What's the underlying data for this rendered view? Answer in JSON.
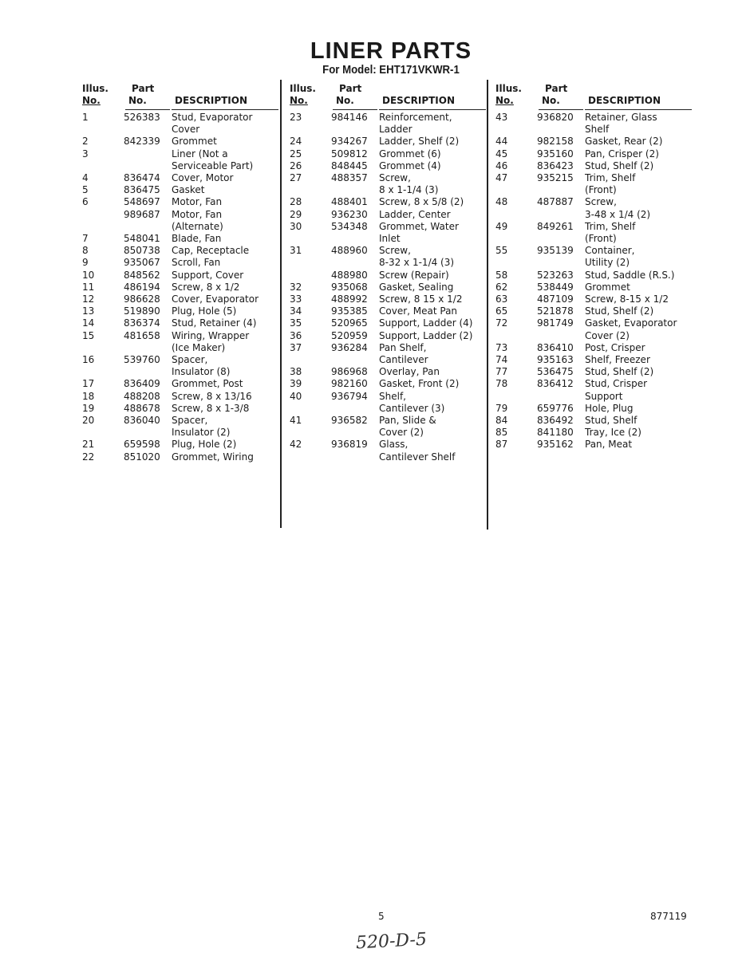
{
  "title": "LINER PARTS",
  "subtitle": "For Model: EHT171VKWR-1",
  "headers": {
    "illus_1": "Illus.",
    "illus_2": "No.",
    "part_1": "Part",
    "part_2": "No.",
    "desc": "DESCRIPTION"
  },
  "columns": [
    {
      "rows": [
        {
          "illus": "1",
          "part": "526383",
          "desc": [
            "Stud, Evaporator",
            "Cover"
          ]
        },
        {
          "illus": "2",
          "part": "842339",
          "desc": [
            "Grommet"
          ]
        },
        {
          "illus": "3",
          "part": "",
          "desc": [
            "Liner (Not a",
            "Serviceable Part)"
          ]
        },
        {
          "illus": "4",
          "part": "836474",
          "desc": [
            "Cover, Motor"
          ]
        },
        {
          "illus": "5",
          "part": "836475",
          "desc": [
            "Gasket"
          ]
        },
        {
          "illus": "6",
          "part": "548697",
          "desc": [
            "Motor, Fan"
          ]
        },
        {
          "illus": "",
          "part": "989687",
          "desc": [
            "Motor, Fan",
            "(Alternate)"
          ]
        },
        {
          "illus": "7",
          "part": "548041",
          "desc": [
            "Blade, Fan"
          ]
        },
        {
          "illus": "8",
          "part": "850738",
          "desc": [
            "Cap, Receptacle"
          ]
        },
        {
          "illus": "9",
          "part": "935067",
          "desc": [
            "Scroll, Fan"
          ]
        },
        {
          "illus": "10",
          "part": "848562",
          "desc": [
            "Support, Cover"
          ]
        },
        {
          "illus": "11",
          "part": "486194",
          "desc": [
            "Screw, 8 x 1/2"
          ]
        },
        {
          "illus": "12",
          "part": "986628",
          "desc": [
            "Cover, Evaporator"
          ]
        },
        {
          "illus": "13",
          "part": "519890",
          "desc": [
            "Plug, Hole (5)"
          ]
        },
        {
          "illus": "14",
          "part": "836374",
          "desc": [
            "Stud, Retainer (4)"
          ]
        },
        {
          "illus": "15",
          "part": "481658",
          "desc": [
            "Wiring, Wrapper",
            "(Ice Maker)"
          ]
        },
        {
          "illus": "16",
          "part": "539760",
          "desc": [
            "Spacer,",
            "Insulator (8)"
          ]
        },
        {
          "illus": "17",
          "part": "836409",
          "desc": [
            "Grommet, Post"
          ]
        },
        {
          "illus": "18",
          "part": "488208",
          "desc": [
            "Screw, 8 x 13/16"
          ]
        },
        {
          "illus": "19",
          "part": "488678",
          "desc": [
            "Screw, 8 x 1-3/8"
          ]
        },
        {
          "illus": "20",
          "part": "836040",
          "desc": [
            "Spacer,",
            "Insulator (2)"
          ]
        },
        {
          "illus": "21",
          "part": "659598",
          "desc": [
            "Plug, Hole (2)"
          ]
        },
        {
          "illus": "22",
          "part": "851020",
          "desc": [
            "Grommet, Wiring"
          ]
        }
      ]
    },
    {
      "rows": [
        {
          "illus": "23",
          "part": "984146",
          "desc": [
            "Reinforcement,",
            "Ladder"
          ]
        },
        {
          "illus": "24",
          "part": "934267",
          "desc": [
            "Ladder, Shelf (2)"
          ]
        },
        {
          "illus": "25",
          "part": "509812",
          "desc": [
            "Grommet (6)"
          ]
        },
        {
          "illus": "26",
          "part": "848445",
          "desc": [
            "Grommet (4)"
          ]
        },
        {
          "illus": "27",
          "part": "488357",
          "desc": [
            "Screw,",
            "8 x 1-1/4 (3)"
          ]
        },
        {
          "illus": "28",
          "part": "488401",
          "desc": [
            "Screw, 8 x 5/8 (2)"
          ]
        },
        {
          "illus": "29",
          "part": "936230",
          "desc": [
            "Ladder, Center"
          ]
        },
        {
          "illus": "30",
          "part": "534348",
          "desc": [
            "Grommet, Water",
            "Inlet"
          ]
        },
        {
          "illus": "31",
          "part": "488960",
          "desc": [
            "Screw,",
            "8-32 x 1-1/4 (3)"
          ]
        },
        {
          "illus": "",
          "part": "488980",
          "desc": [
            "Screw (Repair)"
          ]
        },
        {
          "illus": "32",
          "part": "935068",
          "desc": [
            "Gasket, Sealing"
          ]
        },
        {
          "illus": "33",
          "part": "488992",
          "desc": [
            "Screw, 8 15 x 1/2"
          ]
        },
        {
          "illus": "34",
          "part": "935385",
          "desc": [
            "Cover, Meat Pan"
          ]
        },
        {
          "illus": "35",
          "part": "520965",
          "desc": [
            "Support, Ladder (4)"
          ]
        },
        {
          "illus": "36",
          "part": "520959",
          "desc": [
            "Support, Ladder (2)"
          ]
        },
        {
          "illus": "37",
          "part": "936284",
          "desc": [
            "Pan Shelf,",
            "Cantilever"
          ]
        },
        {
          "illus": "38",
          "part": "986968",
          "desc": [
            "Overlay, Pan"
          ]
        },
        {
          "illus": "39",
          "part": "982160",
          "desc": [
            "Gasket, Front (2)"
          ]
        },
        {
          "illus": "40",
          "part": "936794",
          "desc": [
            "Shelf,",
            "Cantilever (3)"
          ]
        },
        {
          "illus": "41",
          "part": "936582",
          "desc": [
            "Pan, Slide &",
            "Cover (2)"
          ]
        },
        {
          "illus": "42",
          "part": "936819",
          "desc": [
            "Glass,",
            "Cantilever Shelf"
          ]
        }
      ]
    },
    {
      "rows": [
        {
          "illus": "43",
          "part": "936820",
          "desc": [
            "Retainer, Glass",
            "Shelf"
          ]
        },
        {
          "illus": "44",
          "part": "982158",
          "desc": [
            "Gasket, Rear (2)"
          ]
        },
        {
          "illus": "45",
          "part": "935160",
          "desc": [
            "Pan, Crisper (2)"
          ]
        },
        {
          "illus": "46",
          "part": "836423",
          "desc": [
            "Stud, Shelf (2)"
          ]
        },
        {
          "illus": "47",
          "part": "935215",
          "desc": [
            "Trim, Shelf",
            "(Front)"
          ]
        },
        {
          "illus": "48",
          "part": "487887",
          "desc": [
            "Screw,",
            "3-48 x 1/4 (2)"
          ]
        },
        {
          "illus": "49",
          "part": "849261",
          "desc": [
            "Trim, Shelf",
            "(Front)"
          ]
        },
        {
          "illus": "55",
          "part": "935139",
          "desc": [
            "Container,",
            "Utility (2)"
          ]
        },
        {
          "illus": "58",
          "part": "523263",
          "desc": [
            "Stud, Saddle (R.S.)"
          ]
        },
        {
          "illus": "62",
          "part": "538449",
          "desc": [
            "Grommet"
          ]
        },
        {
          "illus": "63",
          "part": "487109",
          "desc": [
            "Screw, 8-15 x 1/2"
          ]
        },
        {
          "illus": "65",
          "part": "521878",
          "desc": [
            "Stud, Shelf (2)"
          ]
        },
        {
          "illus": "72",
          "part": "981749",
          "desc": [
            "Gasket, Evaporator",
            "Cover (2)"
          ]
        },
        {
          "illus": "73",
          "part": "836410",
          "desc": [
            "Post, Crisper"
          ]
        },
        {
          "illus": "74",
          "part": "935163",
          "desc": [
            "Shelf, Freezer"
          ]
        },
        {
          "illus": "77",
          "part": "536475",
          "desc": [
            "Stud, Shelf (2)"
          ]
        },
        {
          "illus": "78",
          "part": "836412",
          "desc": [
            "Stud, Crisper",
            "Support"
          ]
        },
        {
          "illus": "79",
          "part": "659776",
          "desc": [
            "Hole, Plug"
          ]
        },
        {
          "illus": "84",
          "part": "836492",
          "desc": [
            "Stud, Shelf"
          ]
        },
        {
          "illus": "85",
          "part": "841180",
          "desc": [
            "Tray, Ice (2)"
          ]
        },
        {
          "illus": "87",
          "part": "935162",
          "desc": [
            "Pan, Meat"
          ]
        }
      ]
    }
  ],
  "footer": {
    "page": "5",
    "doc_number": "877119",
    "handwritten": "520-D-5"
  }
}
